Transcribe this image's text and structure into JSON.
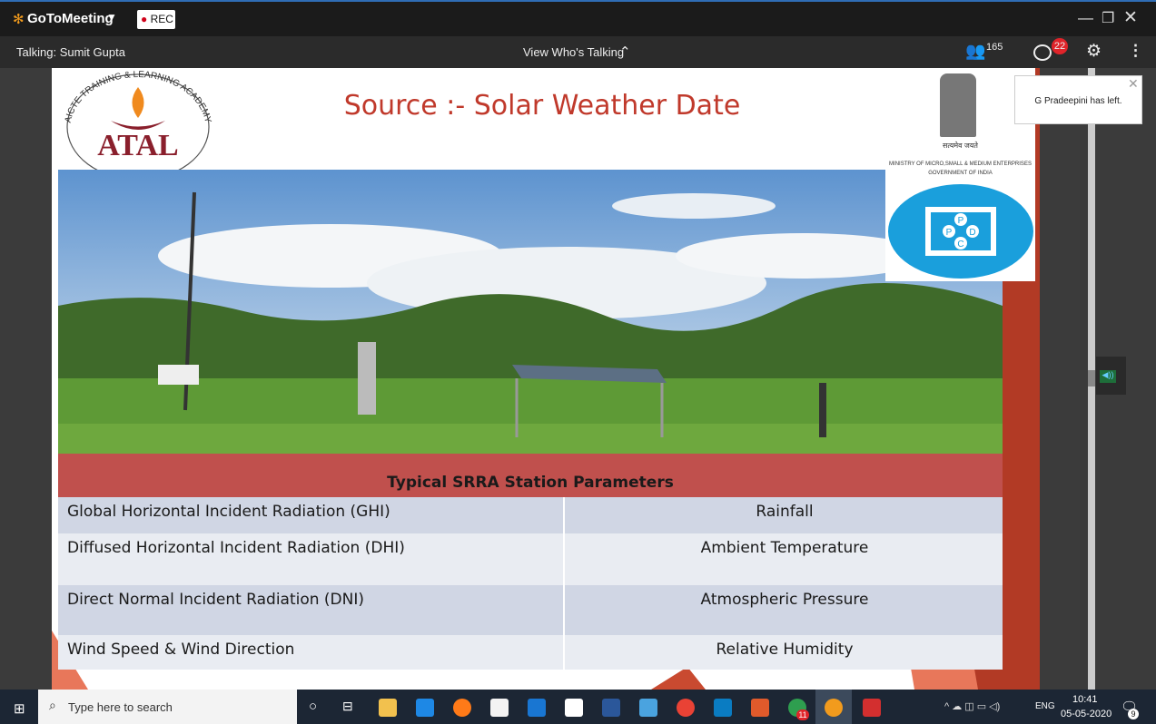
{
  "app": {
    "name": "GoToMeeting",
    "rec": "REC"
  },
  "toolbar": {
    "talking": "Talking: Sumit Gupta",
    "view": "View Who's Talking",
    "participants": "165",
    "chat_badge": "22"
  },
  "notification": "G Pradeepini has left.",
  "slide": {
    "title": "Source :- Solar Weather Date",
    "logo_left": {
      "arc": "AICTE TRAINING & LEARNING ACADEMY",
      "name": "ATAL"
    },
    "logo_right": {
      "motto": "सत्यमेव जयते",
      "ministry": "MINISTRY OF MICRO,SMALL & MEDIUM ENTERPRISES",
      "government": "GOVERNMENT OF INDIA",
      "letters": [
        "P",
        "P",
        "D",
        "C"
      ]
    },
    "table": {
      "header": "Typical SRRA Station Parameters",
      "rows": [
        [
          "Global Horizontal Incident Radiation (GHI)",
          "Rainfall"
        ],
        [
          "Diffused Horizontal Incident Radiation (DHI)",
          "Ambient Temperature"
        ],
        [
          "Direct Normal Incident Radiation (DNI)",
          "Atmospheric Pressure"
        ],
        [
          "Wind Speed & Wind Direction",
          "Relative Humidity"
        ]
      ]
    }
  },
  "taskbar": {
    "search": "Type here to search",
    "badge": "11",
    "lang": "ENG",
    "time": "10:41",
    "date": "05-05-2020",
    "notifications": "9"
  }
}
